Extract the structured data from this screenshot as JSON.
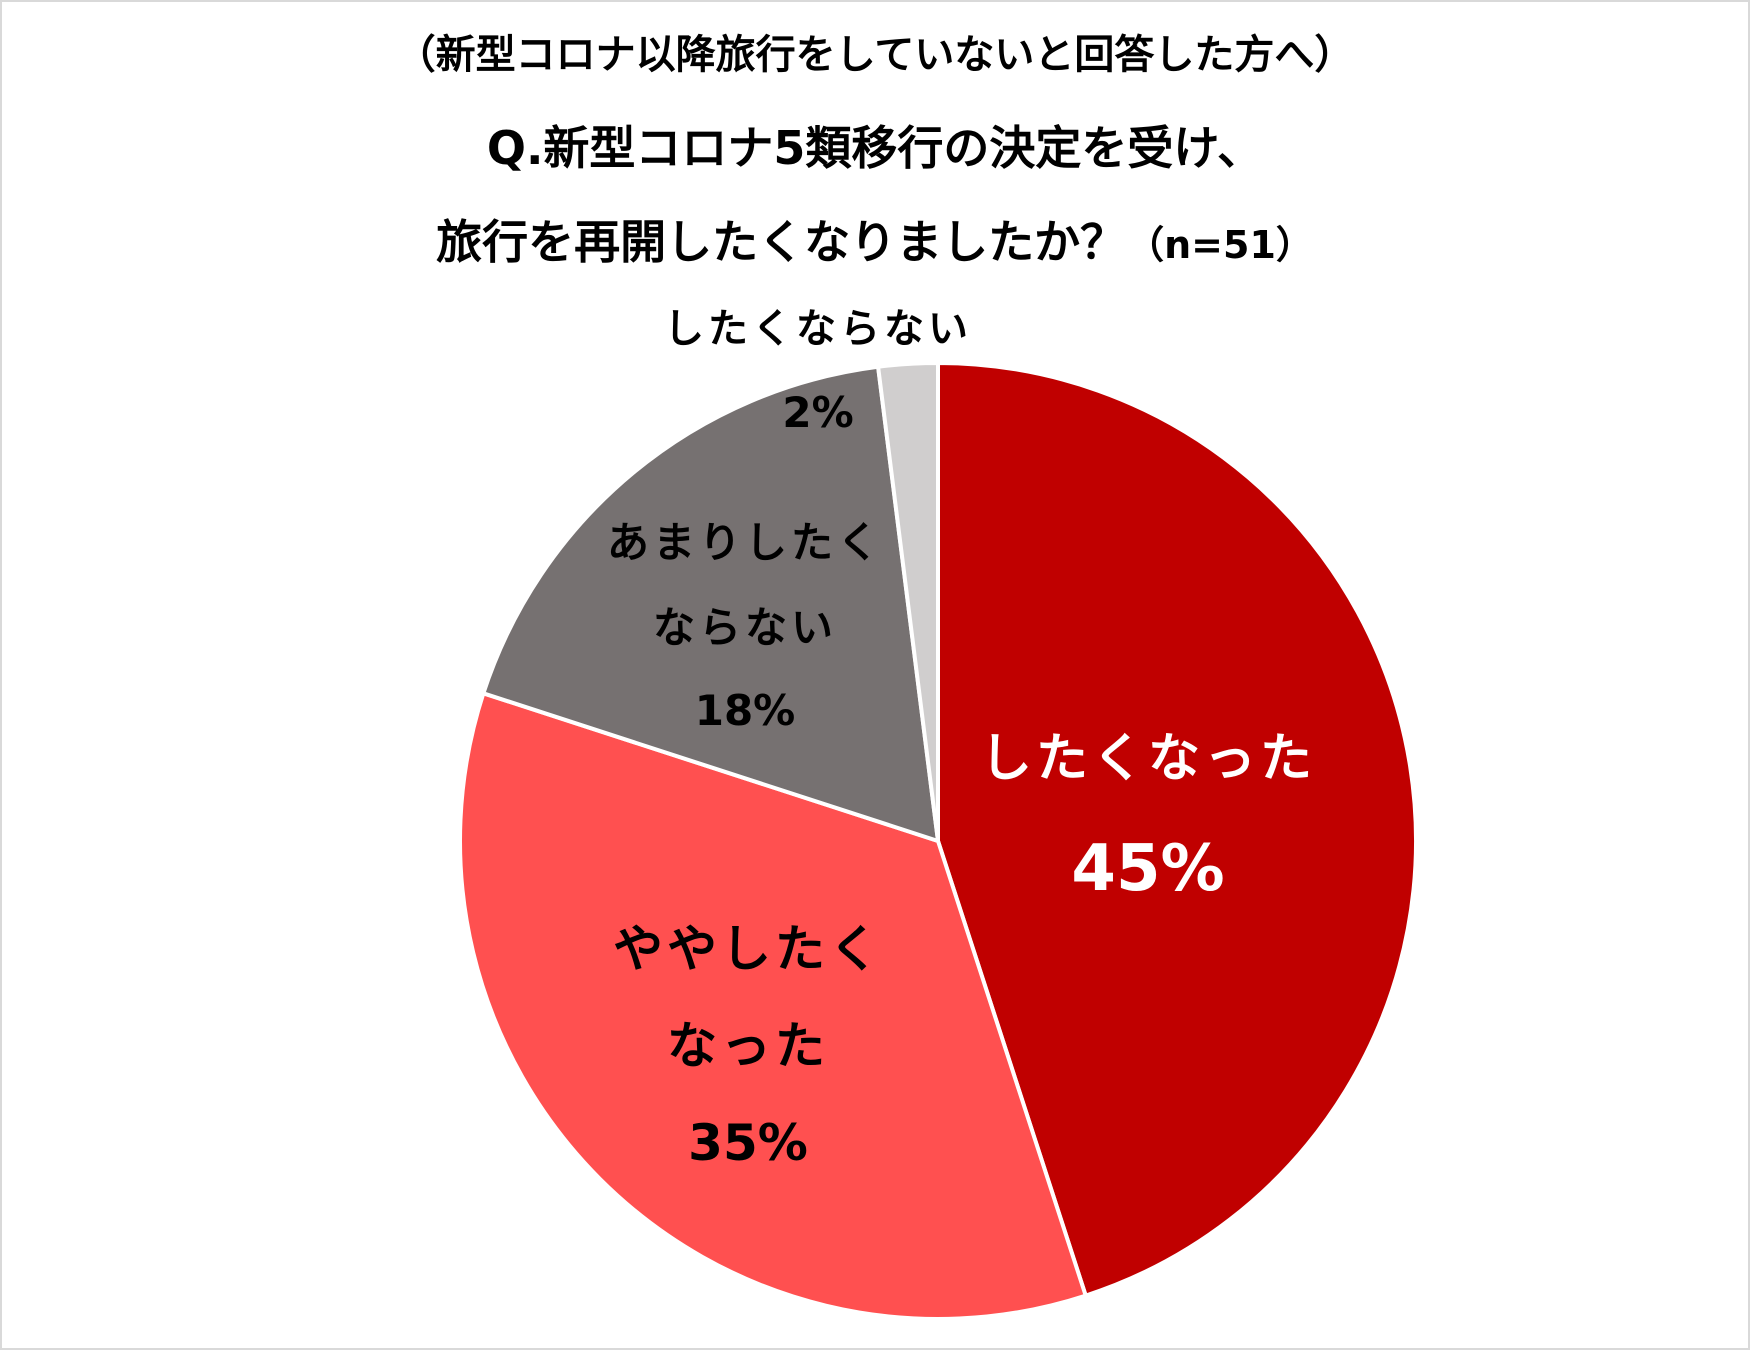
{
  "title": {
    "line1": "（新型コロナ以降旅行をしていないと回答した方へ）",
    "line2": "Q.新型コロナ5類移行の決定を受け、",
    "line3": "旅行を再開したくなりましたか？",
    "sample": "（n=51）"
  },
  "chart_data": {
    "type": "pie",
    "start_angle_deg": 0,
    "direction": "clockwise",
    "slices": [
      {
        "label_lines": [
          "したくなった"
        ],
        "value": 45,
        "value_text": "45%",
        "color": "#c00000",
        "label_color": "#ffffff"
      },
      {
        "label_lines": [
          "ややしたく",
          "なった"
        ],
        "value": 35,
        "value_text": "35%",
        "color": "#ff5050",
        "label_color": "#000000"
      },
      {
        "label_lines": [
          "あまりしたく",
          "ならない"
        ],
        "value": 18,
        "value_text": "18%",
        "color": "#767171",
        "label_color": "#000000"
      },
      {
        "label_lines": [
          "したくならない"
        ],
        "value": 2,
        "value_text": "2%",
        "color": "#d0cece",
        "label_color": "#000000"
      }
    ]
  }
}
